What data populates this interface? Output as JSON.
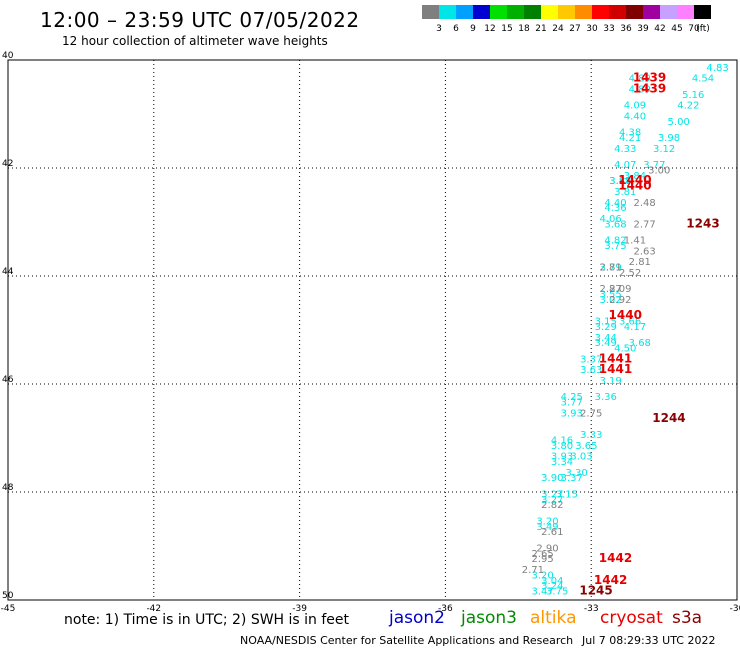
{
  "header": {
    "title": "12:00 – 23:59 UTC 07/05/2022",
    "subtitle": "12 hour collection of altimeter wave heights"
  },
  "color_scale": {
    "labels": [
      "3",
      "6",
      "9",
      "12",
      "15",
      "18",
      "21",
      "24",
      "27",
      "30",
      "33",
      "36",
      "39",
      "42",
      "45",
      "70"
    ],
    "unit": "(ft)",
    "colors": [
      "#7f7f7f",
      "#00e6e6",
      "#00a0ff",
      "#0000d0",
      "#00e000",
      "#00b000",
      "#008000",
      "#ffff00",
      "#ffc800",
      "#ff8c00",
      "#ff0000",
      "#d00000",
      "#800000",
      "#a000a0",
      "#c8a0ff",
      "#ff80ff",
      "#000000"
    ]
  },
  "axes": {
    "lon_labels": [
      "-45",
      "-42",
      "-39",
      "-36",
      "-33",
      "-30"
    ],
    "lat_labels": [
      "50",
      "48",
      "46",
      "44",
      "42",
      "40"
    ],
    "lon_range": [
      -45,
      -30
    ],
    "lat_range": [
      40,
      50
    ]
  },
  "footer": {
    "note": "note: 1) Time is in UTC; 2) SWH is in feet",
    "credit": "NOAA/NESDIS Center for Satellite Applications and Research",
    "timestamp": "Jul  7 08:29:33 UTC 2022"
  },
  "legend": [
    {
      "name": "jason2",
      "color": "#0000c8"
    },
    {
      "name": "jason3",
      "color": "#008c00"
    },
    {
      "name": "altika",
      "color": "#ff9600"
    },
    {
      "name": "cryosat",
      "color": "#e60000"
    },
    {
      "name": "s3a",
      "color": "#8b0000"
    }
  ],
  "chart_data": {
    "type": "scatter",
    "title": "12:00 – 23:59 UTC 07/05/2022",
    "subtitle": "12 hour collection of altimeter wave heights",
    "xlabel": "",
    "ylabel": "",
    "xlim": [
      -45,
      -30
    ],
    "ylim": [
      40,
      50
    ],
    "grid": true,
    "x_ticks": [
      -45,
      -42,
      -39,
      -36,
      -33,
      -30
    ],
    "y_ticks": [
      40,
      42,
      44,
      46,
      48,
      50
    ],
    "series": [
      {
        "name": "",
        "color": "#00e6e6",
        "points": [
          {
            "lon": -30.4,
            "lat": 49.8,
            "swh": "4.83"
          },
          {
            "lon": -30.7,
            "lat": 49.6,
            "swh": "4.54"
          },
          {
            "lon": -30.9,
            "lat": 49.3,
            "swh": "5.16"
          },
          {
            "lon": -31.0,
            "lat": 49.1,
            "swh": "4.22"
          },
          {
            "lon": -31.2,
            "lat": 48.8,
            "swh": "5.00"
          },
          {
            "lon": -31.4,
            "lat": 48.5,
            "swh": "3.98"
          },
          {
            "lon": -31.5,
            "lat": 48.3,
            "swh": "3.12"
          },
          {
            "lon": -31.7,
            "lat": 48.0,
            "swh": "3.77"
          },
          {
            "lon": -32.1,
            "lat": 47.8,
            "swh": "3.84"
          },
          {
            "lon": -32.3,
            "lat": 47.5,
            "swh": "3.81"
          },
          {
            "lon": -32.6,
            "lat": 47.0,
            "swh": "4.06"
          },
          {
            "lon": -32.0,
            "lat": 49.6,
            "swh": "4.89"
          },
          {
            "lon": -32.0,
            "lat": 49.4,
            "swh": "4.89"
          },
          {
            "lon": -32.1,
            "lat": 49.1,
            "swh": "4.09"
          },
          {
            "lon": -32.1,
            "lat": 48.9,
            "swh": "4.40"
          },
          {
            "lon": -32.2,
            "lat": 48.6,
            "swh": "4.38"
          },
          {
            "lon": -32.2,
            "lat": 48.5,
            "swh": "4.21"
          },
          {
            "lon": -32.3,
            "lat": 48.3,
            "swh": "4.33"
          },
          {
            "lon": -32.3,
            "lat": 48.0,
            "swh": "4.07"
          },
          {
            "lon": -32.4,
            "lat": 47.7,
            "swh": "3.87"
          },
          {
            "lon": -32.4,
            "lat": 47.7,
            "swh": "3.88"
          },
          {
            "lon": -32.5,
            "lat": 47.3,
            "swh": "4.40"
          },
          {
            "lon": -32.5,
            "lat": 47.2,
            "swh": "4.36"
          },
          {
            "lon": -32.5,
            "lat": 46.9,
            "swh": "3.68"
          },
          {
            "lon": -32.5,
            "lat": 46.6,
            "swh": "4.82"
          },
          {
            "lon": -32.5,
            "lat": 46.5,
            "swh": "3.75"
          },
          {
            "lon": -32.6,
            "lat": 46.1,
            "swh": "3.79"
          },
          {
            "lon": -32.6,
            "lat": 45.6,
            "swh": "3.55"
          },
          {
            "lon": -32.6,
            "lat": 45.5,
            "swh": "3.02"
          },
          {
            "lon": -32.7,
            "lat": 45.1,
            "swh": "3.15"
          },
          {
            "lon": -32.7,
            "lat": 45.0,
            "swh": "3.29"
          },
          {
            "lon": -32.7,
            "lat": 44.8,
            "swh": "3.44"
          },
          {
            "lon": -32.7,
            "lat": 44.7,
            "swh": "3.49"
          },
          {
            "lon": -33.0,
            "lat": 44.4,
            "swh": "3.37"
          },
          {
            "lon": -33.0,
            "lat": 44.2,
            "swh": "3.63"
          },
          {
            "lon": -33.4,
            "lat": 43.7,
            "swh": "4.25"
          },
          {
            "lon": -33.4,
            "lat": 43.6,
            "swh": "3.77"
          },
          {
            "lon": -33.4,
            "lat": 43.4,
            "swh": "3.93"
          },
          {
            "lon": -33.6,
            "lat": 42.9,
            "swh": "4.16"
          },
          {
            "lon": -33.6,
            "lat": 42.8,
            "swh": "3.80"
          },
          {
            "lon": -33.6,
            "lat": 42.6,
            "swh": "3.93"
          },
          {
            "lon": -33.6,
            "lat": 42.5,
            "swh": "3.34"
          },
          {
            "lon": -33.8,
            "lat": 42.2,
            "swh": "3.90"
          },
          {
            "lon": -33.8,
            "lat": 41.9,
            "swh": "3.27"
          },
          {
            "lon": -33.8,
            "lat": 41.8,
            "swh": "3.27"
          },
          {
            "lon": -33.9,
            "lat": 41.4,
            "swh": "3.20"
          },
          {
            "lon": -33.9,
            "lat": 41.3,
            "swh": "3.49"
          },
          {
            "lon": -34.0,
            "lat": 40.4,
            "swh": "3.20"
          },
          {
            "lon": -33.8,
            "lat": 40.3,
            "swh": "3.04"
          },
          {
            "lon": -33.8,
            "lat": 40.2,
            "swh": "3.24"
          },
          {
            "lon": -34.0,
            "lat": 40.1,
            "swh": "3.47"
          },
          {
            "lon": -33.7,
            "lat": 40.1,
            "swh": "3.75"
          },
          {
            "lon": -32.0,
            "lat": 44.7,
            "swh": "3.68"
          },
          {
            "lon": -32.1,
            "lat": 45.0,
            "swh": "4.17"
          },
          {
            "lon": -32.2,
            "lat": 45.1,
            "swh": "3.66"
          },
          {
            "lon": -32.3,
            "lat": 44.6,
            "swh": "4.50"
          },
          {
            "lon": -32.6,
            "lat": 44.0,
            "swh": "3.19"
          },
          {
            "lon": -32.7,
            "lat": 43.7,
            "swh": "3.36"
          },
          {
            "lon": -33.0,
            "lat": 43.0,
            "swh": "3.33"
          },
          {
            "lon": -33.1,
            "lat": 42.8,
            "swh": "3.65"
          },
          {
            "lon": -33.2,
            "lat": 42.6,
            "swh": "3.03"
          },
          {
            "lon": -33.3,
            "lat": 42.3,
            "swh": "3.30"
          },
          {
            "lon": -33.4,
            "lat": 42.2,
            "swh": "3.37"
          },
          {
            "lon": -33.5,
            "lat": 41.9,
            "swh": "3.15"
          }
        ]
      },
      {
        "name": "",
        "color": "#7f7f7f",
        "points": [
          {
            "lon": -31.6,
            "lat": 47.9,
            "swh": "3.00"
          },
          {
            "lon": -31.9,
            "lat": 47.3,
            "swh": "2.48"
          },
          {
            "lon": -31.9,
            "lat": 46.9,
            "swh": "2.77"
          },
          {
            "lon": -32.1,
            "lat": 46.6,
            "swh": "1.41"
          },
          {
            "lon": -31.9,
            "lat": 46.4,
            "swh": "2.63"
          },
          {
            "lon": -32.0,
            "lat": 46.2,
            "swh": "2.81"
          },
          {
            "lon": -32.2,
            "lat": 46.0,
            "swh": "2.52"
          },
          {
            "lon": -32.4,
            "lat": 45.7,
            "swh": "2.09"
          },
          {
            "lon": -32.4,
            "lat": 45.5,
            "swh": "2.92"
          },
          {
            "lon": -32.6,
            "lat": 46.1,
            "swh": "2.81"
          },
          {
            "lon": -32.6,
            "lat": 45.7,
            "swh": "2.87"
          },
          {
            "lon": -33.0,
            "lat": 43.4,
            "swh": "2.75"
          },
          {
            "lon": -33.8,
            "lat": 41.7,
            "swh": "2.82"
          },
          {
            "lon": -33.8,
            "lat": 41.2,
            "swh": "2.61"
          },
          {
            "lon": -33.9,
            "lat": 40.9,
            "swh": "2.90"
          },
          {
            "lon": -34.0,
            "lat": 40.8,
            "swh": "2.65"
          },
          {
            "lon": -34.0,
            "lat": 40.7,
            "swh": "2.95"
          },
          {
            "lon": -34.2,
            "lat": 40.5,
            "swh": "2.71"
          }
        ]
      },
      {
        "name": "cryosat",
        "color": "#e60000",
        "points": [
          {
            "lon": -31.8,
            "lat": 49.6,
            "swh": "1439"
          },
          {
            "lon": -31.8,
            "lat": 49.4,
            "swh": "1439"
          },
          {
            "lon": -32.1,
            "lat": 47.7,
            "swh": "1440"
          },
          {
            "lon": -32.1,
            "lat": 47.6,
            "swh": "1440"
          },
          {
            "lon": -32.3,
            "lat": 45.2,
            "swh": "1440"
          },
          {
            "lon": -32.5,
            "lat": 44.4,
            "swh": "1441"
          },
          {
            "lon": -32.5,
            "lat": 44.2,
            "swh": "1441"
          },
          {
            "lon": -32.5,
            "lat": 40.7,
            "swh": "1442"
          },
          {
            "lon": -32.6,
            "lat": 40.3,
            "swh": "1442"
          }
        ]
      },
      {
        "name": "s3a",
        "color": "#8b0000",
        "points": [
          {
            "lon": -30.7,
            "lat": 46.9,
            "swh": "1243"
          },
          {
            "lon": -31.4,
            "lat": 43.3,
            "swh": "1244"
          },
          {
            "lon": -32.9,
            "lat": 40.1,
            "swh": "1245"
          }
        ]
      }
    ]
  }
}
